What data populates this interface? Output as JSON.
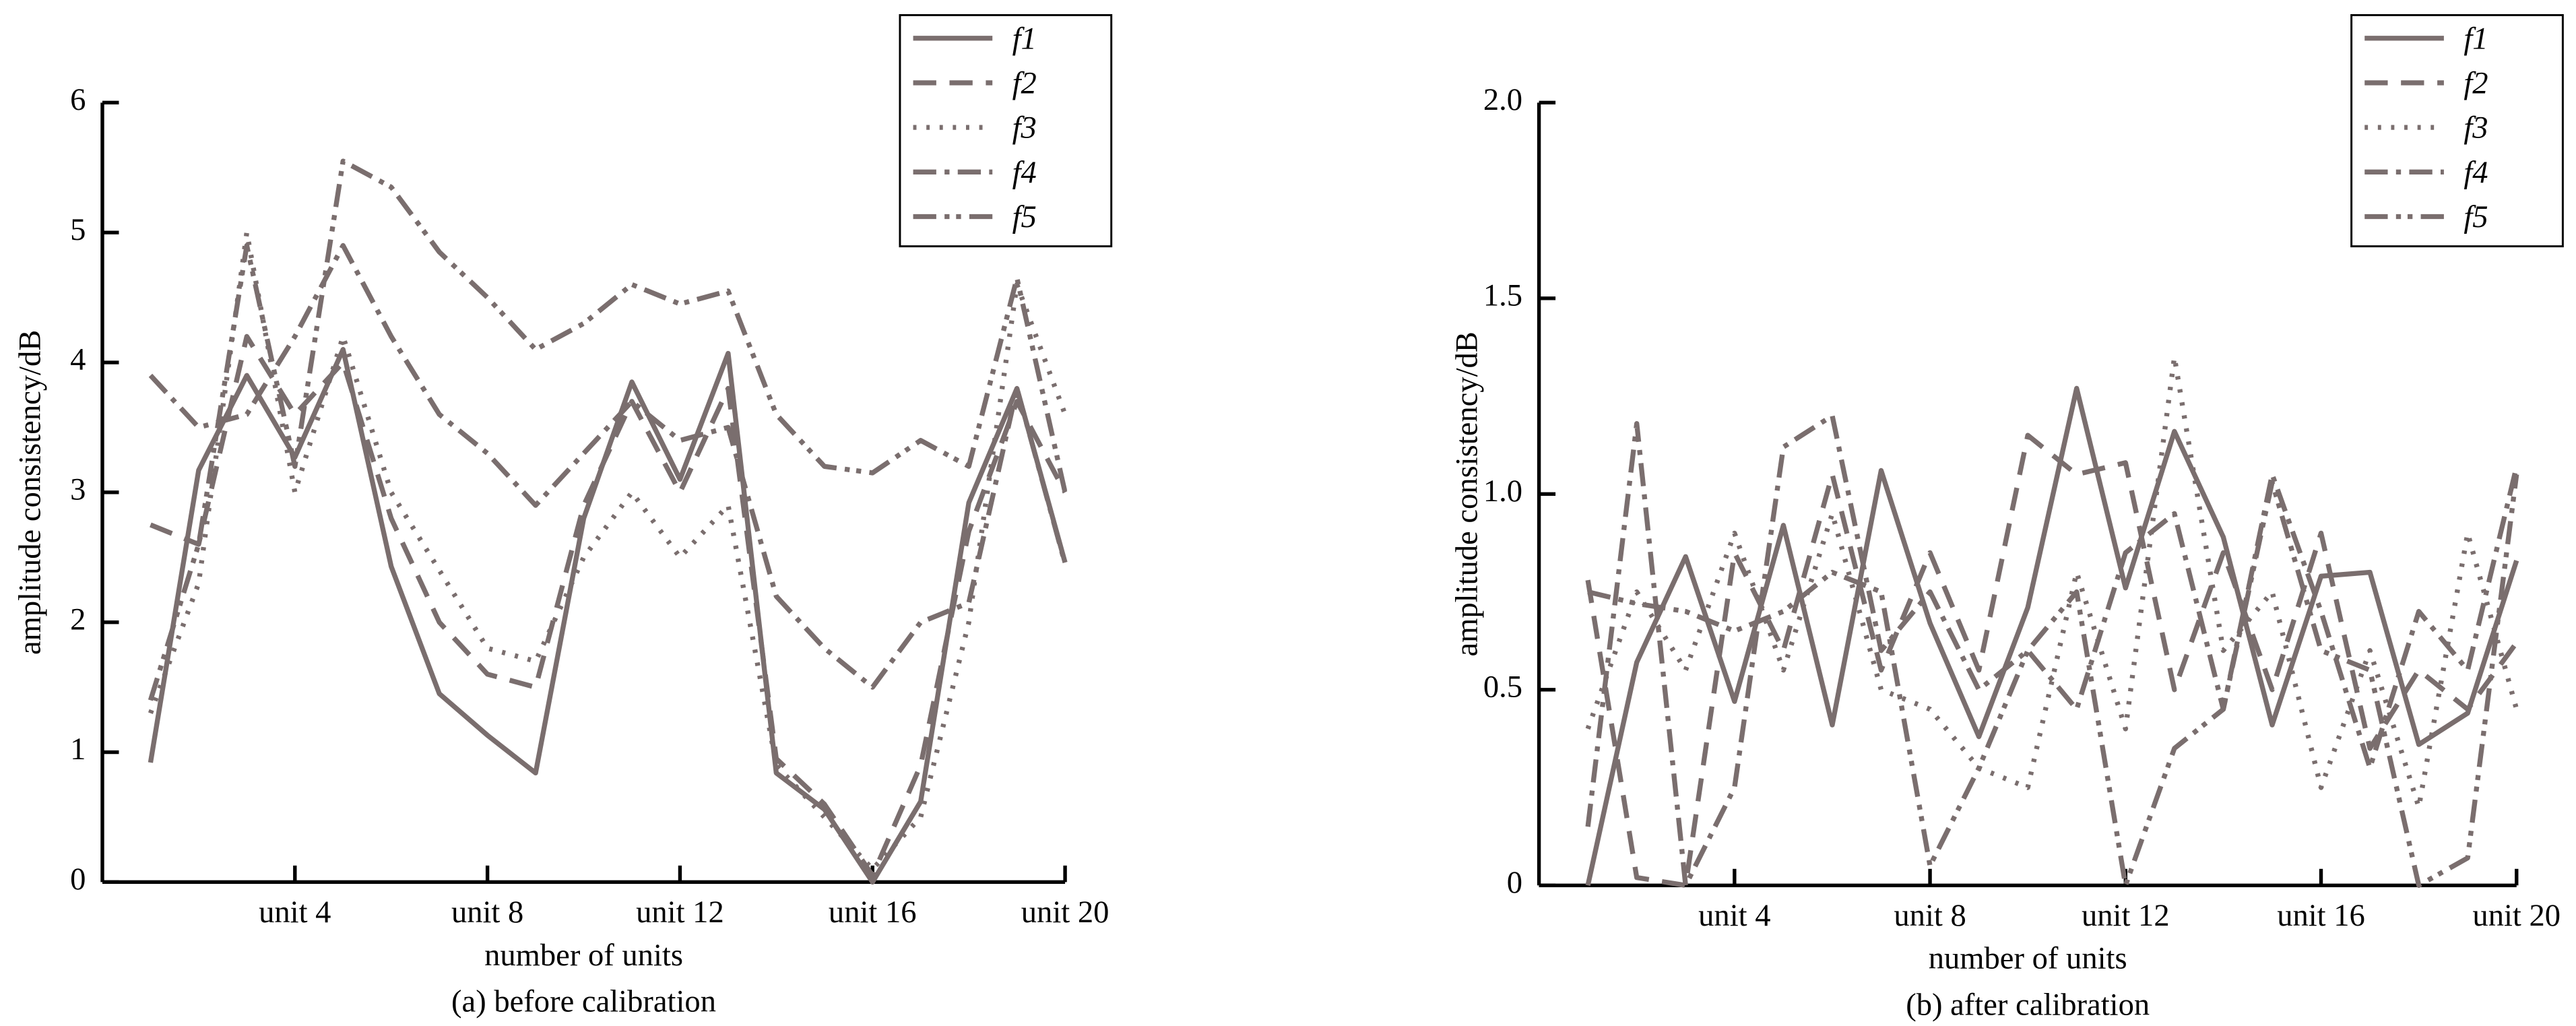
{
  "chart_data": [
    {
      "type": "line",
      "title": "(a) before calibration",
      "xlabel": "number of units",
      "ylabel": "amplitude consistency/dB",
      "x": [
        1,
        2,
        3,
        4,
        5,
        6,
        7,
        8,
        9,
        10,
        11,
        12,
        13,
        14,
        15,
        16,
        17,
        18,
        19,
        20
      ],
      "xlim": [
        0,
        20
      ],
      "xticks": [
        {
          "value": 4,
          "label": "unit 4"
        },
        {
          "value": 8,
          "label": "unit 8"
        },
        {
          "value": 12,
          "label": "unit 12"
        },
        {
          "value": 16,
          "label": "unit 16"
        },
        {
          "value": 20,
          "label": "unit 20"
        }
      ],
      "ylim": [
        0,
        6
      ],
      "yticks": [
        0,
        1,
        2,
        3,
        4,
        5,
        6
      ],
      "legend": "upper right",
      "series": [
        {
          "name": "f1",
          "color": "#7a6e6e",
          "dash": "none",
          "values": [
            0.92,
            3.17,
            3.9,
            3.27,
            4.1,
            2.43,
            1.45,
            1.13,
            0.84,
            2.8,
            3.85,
            3.1,
            4.07,
            0.84,
            0.56,
            0,
            0.62,
            2.92,
            3.8,
            2.46
          ]
        },
        {
          "name": "f2",
          "color": "#7a6e6e",
          "dash": "14,8",
          "values": [
            2.75,
            2.6,
            4.2,
            3.6,
            4.0,
            2.8,
            2.0,
            1.6,
            1.5,
            2.9,
            3.7,
            3.0,
            3.8,
            0.95,
            0.6,
            0.05,
            0.9,
            2.7,
            3.7,
            3.0
          ]
        },
        {
          "name": "f3",
          "color": "#7a6e6e",
          "dash": "2,6",
          "values": [
            1.3,
            2.3,
            5.0,
            3.0,
            4.2,
            3.0,
            2.4,
            1.8,
            1.7,
            2.5,
            3.0,
            2.5,
            2.9,
            0.9,
            0.5,
            0.1,
            0.5,
            2.0,
            4.6,
            3.6
          ]
        },
        {
          "name": "f4",
          "color": "#7a6e6e",
          "dash": "14,5,3,5",
          "values": [
            3.9,
            3.5,
            3.6,
            4.2,
            4.9,
            4.2,
            3.6,
            3.3,
            2.9,
            3.3,
            3.7,
            3.4,
            3.5,
            2.2,
            1.8,
            1.5,
            2.0,
            2.15,
            3.8,
            2.45
          ]
        },
        {
          "name": "f5",
          "color": "#7a6e6e",
          "dash": "14,5,3,4,3,5",
          "values": [
            1.4,
            2.6,
            4.9,
            3.2,
            5.55,
            5.35,
            4.85,
            4.5,
            4.1,
            4.3,
            4.6,
            4.45,
            4.55,
            3.6,
            3.2,
            3.15,
            3.4,
            3.2,
            4.65,
            3.0
          ]
        }
      ]
    },
    {
      "type": "line",
      "title": "(b) after calibration",
      "xlabel": "number of units",
      "ylabel": "amplitude consistency/dB",
      "x": [
        1,
        2,
        3,
        4,
        5,
        6,
        7,
        8,
        9,
        10,
        11,
        12,
        13,
        14,
        15,
        16,
        17,
        18,
        19,
        20
      ],
      "xlim": [
        0,
        20
      ],
      "xticks": [
        {
          "value": 4,
          "label": "unit 4"
        },
        {
          "value": 8,
          "label": "unit 8"
        },
        {
          "value": 12,
          "label": "unit 12"
        },
        {
          "value": 16,
          "label": "unit 16"
        },
        {
          "value": 20,
          "label": "unit 20"
        }
      ],
      "ylim": [
        0,
        2
      ],
      "yticks": [
        0,
        0.5,
        {
          "value": 1,
          "label": "1.0"
        },
        1.5,
        {
          "value": 2,
          "label": "2.0"
        }
      ],
      "legend": "upper right",
      "series": [
        {
          "name": "f1",
          "color": "#7a6e6e",
          "dash": "none",
          "values": [
            0,
            0.57,
            0.84,
            0.47,
            0.92,
            0.41,
            1.06,
            0.67,
            0.38,
            0.71,
            1.27,
            0.76,
            1.16,
            0.89,
            0.41,
            0.79,
            0.8,
            0.36,
            0.44,
            0.83
          ]
        },
        {
          "name": "f2",
          "color": "#7a6e6e",
          "dash": "14,8",
          "values": [
            0.78,
            0.02,
            0,
            0.85,
            0.6,
            1.05,
            0.55,
            0.85,
            0.55,
            1.15,
            1.05,
            1.08,
            0.5,
            0.85,
            0.5,
            0.9,
            0.35,
            0.55,
            0.45,
            0.62
          ]
        },
        {
          "name": "f3",
          "color": "#7a6e6e",
          "dash": "2,6",
          "values": [
            0.4,
            0.75,
            0.55,
            0.9,
            0.55,
            0.95,
            0.5,
            0.45,
            0.3,
            0.25,
            0.8,
            0.4,
            1.35,
            0.6,
            0.75,
            0.25,
            0.6,
            0.2,
            0.9,
            0.45
          ]
        },
        {
          "name": "f4",
          "color": "#7a6e6e",
          "dash": "14,5,3,5",
          "values": [
            0.15,
            1.18,
            0,
            0.25,
            1.12,
            1.2,
            0.6,
            0.75,
            0.5,
            0.6,
            0.45,
            0.85,
            0.95,
            0.45,
            1.05,
            0.7,
            0.3,
            0.7,
            0.55,
            1.07
          ]
        },
        {
          "name": "f5",
          "color": "#7a6e6e",
          "dash": "14,5,3,4,3,5",
          "values": [
            0.75,
            0.72,
            0.7,
            0.65,
            0.7,
            0.8,
            0.75,
            0.05,
            0.3,
            0.6,
            0.75,
            0,
            0.35,
            0.45,
            1.03,
            0.6,
            0.55,
            0,
            0.07,
            1.05
          ]
        }
      ]
    }
  ]
}
